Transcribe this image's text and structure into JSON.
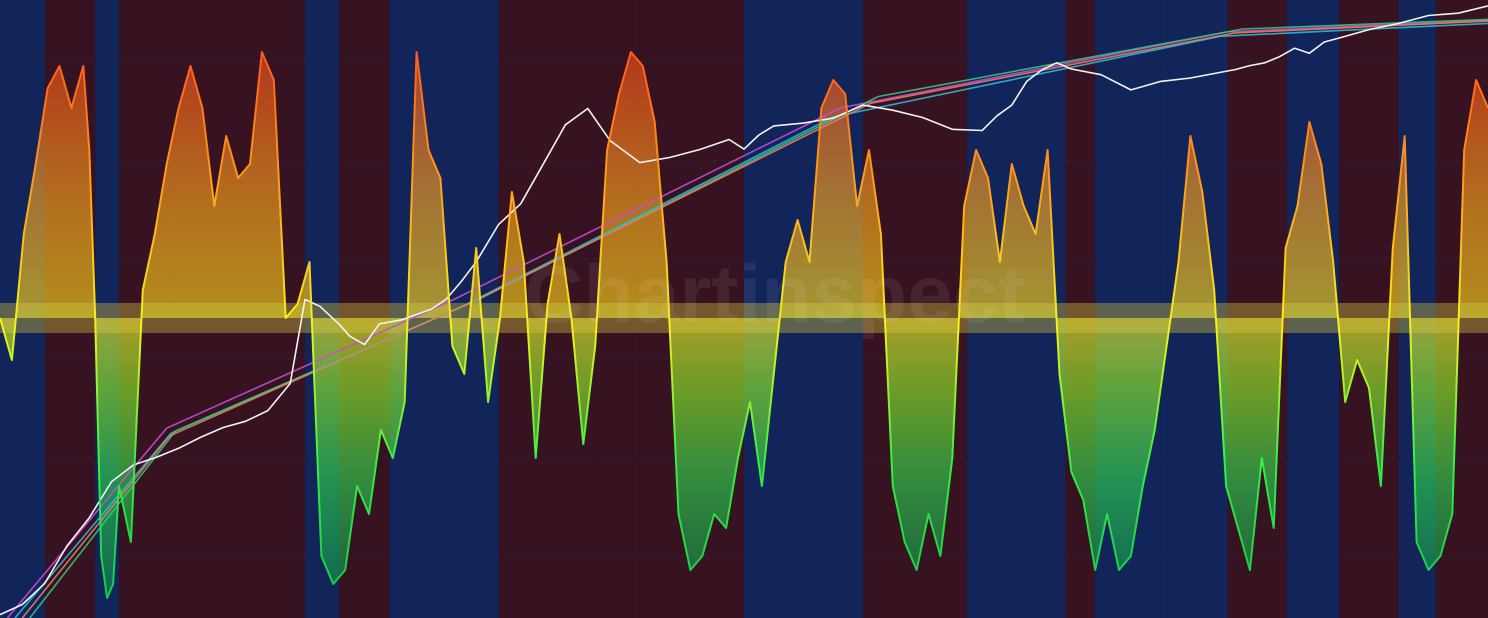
{
  "watermark": "Chartinspect",
  "colors": {
    "background": "#03061a",
    "grid": "#1e2745",
    "regime_blue": "#1e3f8f",
    "regime_red": "#5a1c28",
    "price_line": "#f3f3f3",
    "midline_band": "#d9c93f"
  },
  "chart_data": {
    "type": "area",
    "title": "",
    "xlabel": "",
    "ylabel": "",
    "grid": true,
    "osc_range": [
      -1,
      1
    ],
    "x_range": [
      0,
      1000
    ],
    "regimes": [
      {
        "x0": 0,
        "x1": 30,
        "kind": "blue"
      },
      {
        "x0": 30,
        "x1": 64,
        "kind": "red"
      },
      {
        "x0": 64,
        "x1": 80,
        "kind": "blue"
      },
      {
        "x0": 80,
        "x1": 113,
        "kind": "red"
      },
      {
        "x0": 113,
        "x1": 205,
        "kind": "red"
      },
      {
        "x0": 205,
        "x1": 228,
        "kind": "blue"
      },
      {
        "x0": 228,
        "x1": 247,
        "kind": "red"
      },
      {
        "x0": 247,
        "x1": 262,
        "kind": "red"
      },
      {
        "x0": 262,
        "x1": 335,
        "kind": "blue"
      },
      {
        "x0": 335,
        "x1": 400,
        "kind": "red"
      },
      {
        "x0": 400,
        "x1": 430,
        "kind": "red"
      },
      {
        "x0": 430,
        "x1": 500,
        "kind": "red"
      },
      {
        "x0": 500,
        "x1": 580,
        "kind": "blue"
      },
      {
        "x0": 580,
        "x1": 612,
        "kind": "red"
      },
      {
        "x0": 612,
        "x1": 650,
        "kind": "red"
      },
      {
        "x0": 650,
        "x1": 716,
        "kind": "blue"
      },
      {
        "x0": 716,
        "x1": 736,
        "kind": "red"
      },
      {
        "x0": 736,
        "x1": 780,
        "kind": "blue"
      },
      {
        "x0": 780,
        "x1": 825,
        "kind": "blue"
      },
      {
        "x0": 825,
        "x1": 865,
        "kind": "red"
      },
      {
        "x0": 865,
        "x1": 900,
        "kind": "blue"
      },
      {
        "x0": 900,
        "x1": 940,
        "kind": "red"
      },
      {
        "x0": 940,
        "x1": 965,
        "kind": "blue"
      },
      {
        "x0": 965,
        "x1": 987,
        "kind": "red"
      },
      {
        "x0": 987,
        "x1": 1000,
        "kind": "red"
      }
    ],
    "price_series": {
      "x": [
        0,
        15,
        30,
        45,
        60,
        75,
        90,
        105,
        120,
        135,
        150,
        165,
        180,
        195,
        205,
        215,
        228,
        235,
        245,
        255,
        270,
        290,
        300,
        310,
        320,
        335,
        350,
        365,
        380,
        395,
        410,
        430,
        450,
        470,
        490,
        500,
        510,
        520,
        540,
        560,
        580,
        600,
        620,
        640,
        660,
        670,
        680,
        690,
        700,
        710,
        720,
        740,
        760,
        780,
        800,
        820,
        830,
        840,
        850,
        860,
        870,
        880,
        890,
        900,
        920,
        940,
        960,
        980,
        1000
      ],
      "y": [
        0.6,
        2.4,
        6.1,
        12.8,
        17.8,
        24.2,
        27.2,
        28.5,
        30.1,
        32.1,
        33.8,
        34.9,
        36.8,
        41.6,
        56.5,
        55.3,
        52.1,
        50.0,
        48.5,
        52.2,
        52.9,
        54.8,
        56.6,
        59.7,
        63.2,
        69.8,
        73.5,
        80.5,
        87.5,
        90.4,
        84.7,
        80.8,
        81.7,
        83.1,
        84.9,
        83.2,
        85.7,
        87.3,
        87.8,
        88.7,
        91.0,
        90.1,
        88.8,
        86.7,
        86.5,
        89.1,
        91.0,
        95.2,
        97.2,
        98.5,
        97.4,
        96.4,
        93.7,
        95.2,
        95.8,
        96.8,
        97.3,
        98.0,
        98.5,
        99.6,
        101.1,
        100.2,
        102.2,
        102.9,
        104.4,
        105.5,
        106.9,
        107.3,
        108.6
      ]
    },
    "oscillator_series": {
      "x": [
        0,
        8,
        16,
        24,
        32,
        40,
        48,
        56,
        60,
        64,
        68,
        72,
        76,
        80,
        88,
        96,
        104,
        112,
        120,
        128,
        136,
        144,
        152,
        160,
        168,
        176,
        184,
        192,
        200,
        208,
        216,
        224,
        232,
        240,
        248,
        256,
        264,
        272,
        280,
        288,
        296,
        304,
        312,
        320,
        328,
        336,
        344,
        352,
        360,
        368,
        376,
        384,
        392,
        400,
        408,
        416,
        424,
        432,
        440,
        448,
        456,
        464,
        472,
        480,
        488,
        496,
        504,
        512,
        520,
        528,
        536,
        544,
        552,
        560,
        568,
        576,
        584,
        592,
        600,
        608,
        616,
        624,
        632,
        640,
        648,
        656,
        664,
        672,
        680,
        688,
        696,
        704,
        712,
        720,
        728,
        736,
        744,
        752,
        760,
        768,
        776,
        784,
        792,
        800,
        808,
        816,
        824,
        832,
        840,
        848,
        856,
        864,
        872,
        880,
        888,
        896,
        904,
        912,
        920,
        928,
        936,
        944,
        952,
        960,
        968,
        976,
        984,
        992,
        1000
      ],
      "y": [
        0.0,
        -0.15,
        0.3,
        0.55,
        0.82,
        0.9,
        0.75,
        0.9,
        0.6,
        0.0,
        -0.85,
        -1.0,
        -0.95,
        -0.6,
        -0.8,
        0.1,
        0.3,
        0.55,
        0.75,
        0.9,
        0.75,
        0.4,
        0.65,
        0.5,
        0.55,
        0.95,
        0.85,
        0.0,
        0.05,
        0.2,
        -0.85,
        -0.95,
        -0.9,
        -0.6,
        -0.7,
        -0.4,
        -0.5,
        -0.3,
        0.95,
        0.6,
        0.5,
        -0.1,
        -0.2,
        0.25,
        -0.3,
        0.0,
        0.45,
        0.2,
        -0.5,
        0.05,
        0.3,
        0.0,
        -0.45,
        -0.1,
        0.6,
        0.8,
        0.95,
        0.9,
        0.7,
        0.2,
        -0.7,
        -0.9,
        -0.85,
        -0.7,
        -0.75,
        -0.5,
        -0.3,
        -0.6,
        -0.2,
        0.2,
        0.35,
        0.2,
        0.75,
        0.85,
        0.8,
        0.4,
        0.6,
        0.3,
        -0.6,
        -0.8,
        -0.9,
        -0.7,
        -0.85,
        -0.5,
        0.4,
        0.6,
        0.5,
        0.2,
        0.55,
        0.4,
        0.3,
        0.6,
        -0.2,
        -0.55,
        -0.65,
        -0.9,
        -0.7,
        -0.9,
        -0.85,
        -0.6,
        -0.4,
        -0.1,
        0.2,
        0.65,
        0.45,
        0.1,
        -0.6,
        -0.75,
        -0.9,
        -0.5,
        -0.75,
        0.25,
        0.4,
        0.7,
        0.55,
        0.2,
        -0.3,
        -0.15,
        -0.25,
        -0.6,
        0.25,
        0.65,
        -0.8,
        -0.9,
        -0.85,
        -0.7,
        0.6,
        0.85,
        0.75
      ]
    },
    "trend_lines": [
      {
        "color": "#c24fd1",
        "points": [
          [
            5,
            0.0
          ],
          [
            112,
            33.7
          ],
          [
            305,
            56.5
          ],
          [
            565,
            90.5
          ],
          [
            825,
            104.0
          ],
          [
            1000,
            106.0
          ]
        ]
      },
      {
        "color": "#2db8d6",
        "points": [
          [
            10,
            0.0
          ],
          [
            115,
            32.8
          ],
          [
            310,
            55.2
          ],
          [
            560,
            88.9
          ],
          [
            820,
            103.2
          ],
          [
            1000,
            105.5
          ]
        ]
      },
      {
        "color": "#37c37a",
        "points": [
          [
            20,
            0.0
          ],
          [
            118,
            33.2
          ],
          [
            320,
            56.3
          ],
          [
            590,
            92.5
          ],
          [
            835,
            104.5
          ],
          [
            1000,
            106.2
          ]
        ]
      },
      {
        "color": "#e77d5c",
        "points": [
          [
            15,
            0.0
          ],
          [
            114,
            32.3
          ],
          [
            315,
            55.8
          ],
          [
            585,
            91.3
          ],
          [
            830,
            103.8
          ],
          [
            1000,
            105.9
          ]
        ]
      }
    ]
  }
}
